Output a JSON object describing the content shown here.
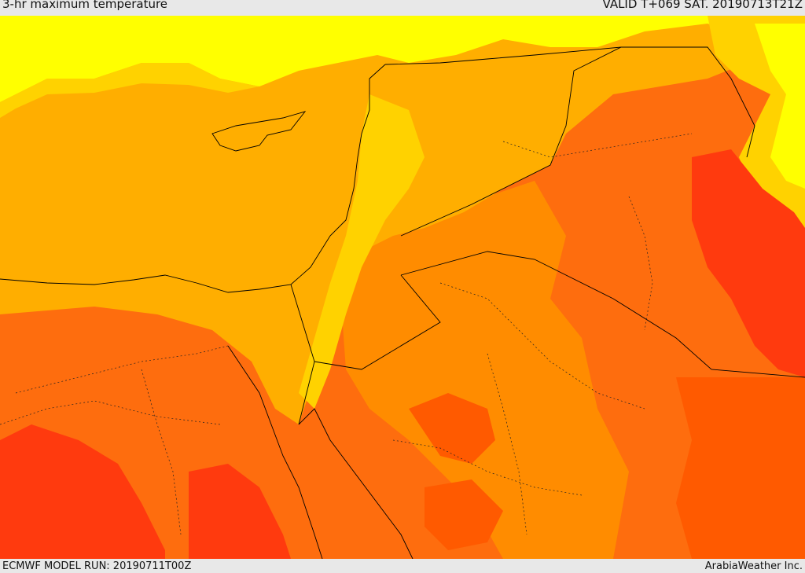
{
  "header": {
    "title": "3-hr maximum temperature",
    "valid_time": "VALID T+069 SAT. 20190713T21Z"
  },
  "footer": {
    "model_run": "ECMWF MODEL RUN: 20190711T00Z",
    "credit": "ArabiaWeather Inc."
  },
  "map": {
    "field": "temperature",
    "palette": {
      "yellow": "#ffff00",
      "light_orange": "#ffd200",
      "amber": "#ffae00",
      "orange": "#ff8c00",
      "dark_orange": "#fe6d0e",
      "red_orange": "#ff5a00",
      "red": "#ff3a0e"
    },
    "border_color": "#000000"
  }
}
